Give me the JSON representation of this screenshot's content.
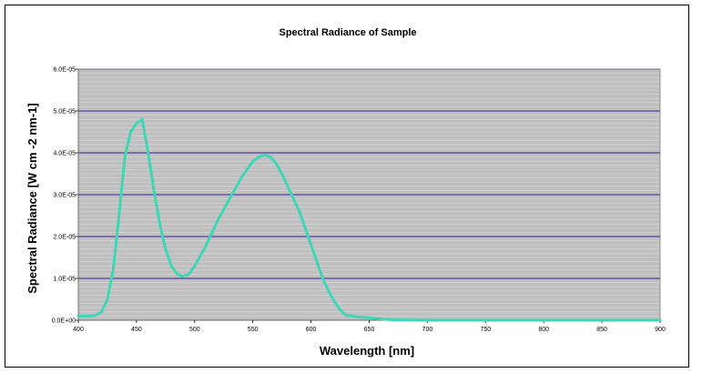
{
  "chart_data": {
    "type": "line",
    "title": "Spectral Radiance of Sample",
    "xlabel": "Wavelength [nm]",
    "ylabel": "Spectral Radiance [W cm -2 nm-1]",
    "xlim": [
      400,
      900
    ],
    "ylim": [
      0,
      6e-05
    ],
    "x_ticks": [
      400,
      450,
      500,
      550,
      600,
      650,
      700,
      750,
      800,
      850,
      900
    ],
    "x_tick_labels": [
      "400",
      "450",
      "500",
      "550",
      "600",
      "650",
      "700",
      "750",
      "800",
      "850",
      "900"
    ],
    "y_ticks": [
      0,
      1e-05,
      2e-05,
      3e-05,
      4e-05,
      5e-05,
      6e-05
    ],
    "y_tick_labels": [
      "0.0E+00",
      "1.0E-05",
      "2.0E-05",
      "3.0E-05",
      "4.0E-05",
      "5.0E-05",
      "6.0E-05"
    ],
    "grid": true,
    "legend": "none",
    "series": [
      {
        "color": "#3fd6b5",
        "x": [
          400,
          410,
          415,
          420,
          425,
          430,
          435,
          440,
          445,
          450,
          455,
          460,
          465,
          470,
          475,
          480,
          485,
          490,
          495,
          500,
          505,
          510,
          515,
          520,
          525,
          530,
          535,
          540,
          545,
          550,
          555,
          560,
          565,
          570,
          575,
          580,
          585,
          590,
          595,
          600,
          605,
          610,
          615,
          620,
          625,
          630,
          640,
          650,
          660,
          670,
          700,
          750,
          800,
          850,
          900
        ],
        "y": [
          1e-06,
          1e-06,
          1.2e-06,
          2e-06,
          5e-06,
          1.2e-05,
          2.5e-05,
          3.9e-05,
          4.5e-05,
          4.7e-05,
          4.8e-05,
          4e-05,
          3.1e-05,
          2.3e-05,
          1.7e-05,
          1.3e-05,
          1.1e-05,
          1.05e-05,
          1.1e-05,
          1.3e-05,
          1.55e-05,
          1.8e-05,
          2.1e-05,
          2.4e-05,
          2.65e-05,
          2.9e-05,
          3.15e-05,
          3.4e-05,
          3.6e-05,
          3.8e-05,
          3.9e-05,
          3.95e-05,
          3.9e-05,
          3.75e-05,
          3.5e-05,
          3.2e-05,
          2.9e-05,
          2.6e-05,
          2.2e-05,
          1.8e-05,
          1.4e-05,
          1e-05,
          7e-06,
          4.5e-06,
          2.5e-06,
          1.2e-06,
          8e-07,
          6e-07,
          3e-07,
          1e-07,
          0,
          0,
          0,
          0,
          0
        ]
      }
    ]
  },
  "colors": {
    "plot_background": "#c0c0c0",
    "major_grid": "#3b1a99",
    "minor_grid": "#d8d8d8",
    "line": "#3fd6b5"
  }
}
